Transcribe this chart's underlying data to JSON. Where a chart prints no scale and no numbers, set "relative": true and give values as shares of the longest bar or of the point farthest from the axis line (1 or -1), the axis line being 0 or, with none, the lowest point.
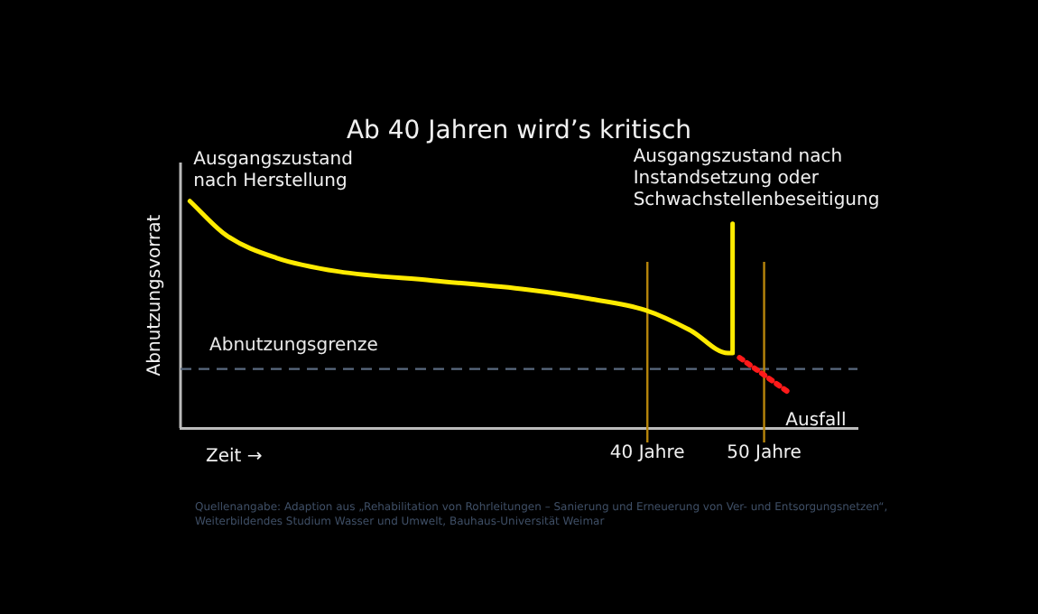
{
  "chart_data": {
    "type": "line",
    "title": "Ab 40 Jahren wird’s kritisch",
    "xlabel": "Zeit →",
    "ylabel": "Abnutzungsvorrat",
    "relative": true,
    "xlim": [
      0,
      58
    ],
    "xticks": [
      {
        "value": 40,
        "label": "40 Jahre"
      },
      {
        "value": 50,
        "label": "50 Jahre"
      }
    ],
    "grid": false,
    "legend": false,
    "marker": "none",
    "series": [
      {
        "color": "#ffeb00",
        "line_style": "solid",
        "x": [
          0.8,
          3.9,
          8.2,
          13.5,
          21.6,
          29.7,
          35,
          39.8,
          43.7,
          46.9,
          47.3,
          47.3
        ],
        "values": [
          1.0,
          0.85,
          0.75,
          0.69,
          0.65,
          0.61,
          0.57,
          0.52,
          0.43,
          0.33,
          0.33,
          0.9
        ]
      },
      {
        "color": "#ff1a1a",
        "line_style": "dotted",
        "x": [
          47.9,
          52.3
        ],
        "values": [
          0.31,
          0.15
        ]
      }
    ],
    "ref_lines": [
      {
        "axis": "y",
        "value": 0.26,
        "label": "Abnutzungsgrenze",
        "color": "#5a6a80",
        "line_style": "dashed"
      },
      {
        "axis": "x",
        "value": 40,
        "color": "#b8860b",
        "line_style": "solid"
      },
      {
        "axis": "x",
        "value": 50,
        "color": "#b8860b",
        "line_style": "solid"
      }
    ],
    "annotations": [
      {
        "text": "Ausgangszustand\nnach Herstellung",
        "x": 0.8,
        "y": 1.0
      },
      {
        "text": "Ausgangszustand nach\nInstandsetzung oder\nSchwachstellenbeseitigung",
        "x": 47.3,
        "y": 0.9
      },
      {
        "text": "Ausfall",
        "x": 52.3,
        "y": 0.15
      },
      "Quellenangabe: Adaption aus „Rehabilitation von Rohrleitungen – Sanierung und Erneuerung von Ver- und Entsorgungsnetzen“,\nWeiterbildendes Studium Wasser und Umwelt, Bauhaus-Universität Weimar"
    ]
  }
}
